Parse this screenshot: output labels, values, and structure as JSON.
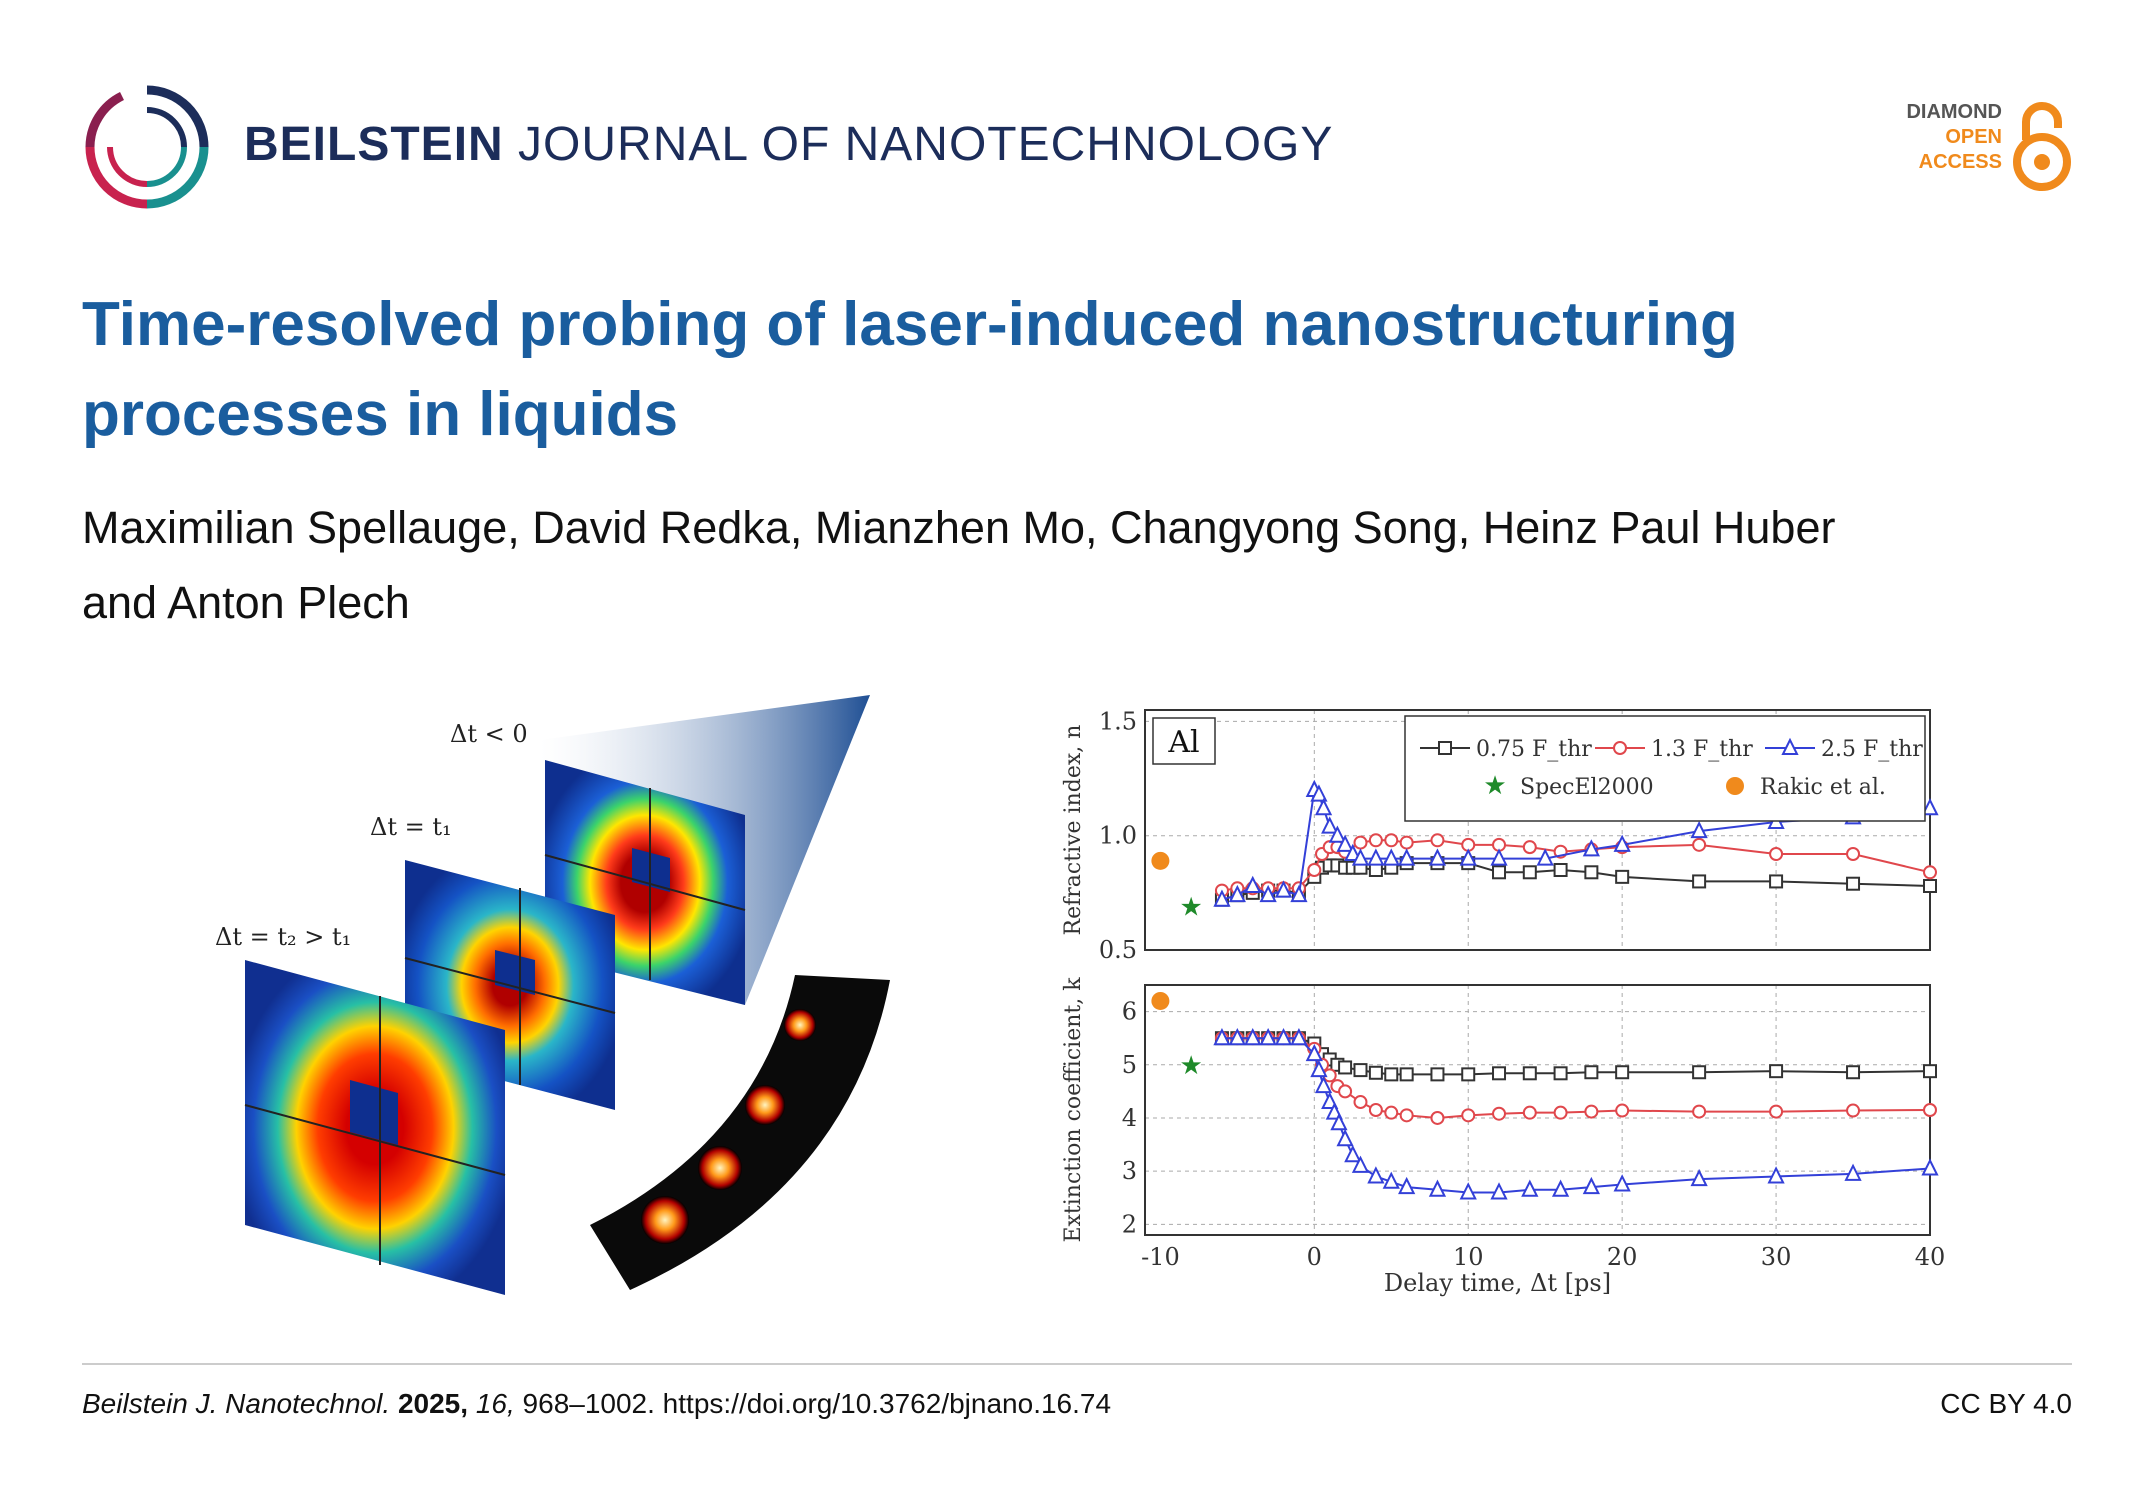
{
  "header": {
    "journal_bold": "BEILSTEIN",
    "journal_rest": "JOURNAL OF NANOTECHNOLOGY",
    "oa_line1": "DIAMOND",
    "oa_line2": "OPEN",
    "oa_line3": "ACCESS"
  },
  "article": {
    "title_line1": "Time-resolved probing of laser-induced nanostructuring",
    "title_line2": "processes in liquids",
    "authors_line1": "Maximilian Spellauge, David Redka, Mianzhen Mo, Changyong Song, Heinz Paul Huber",
    "authors_line2": "and Anton Plech"
  },
  "left_graphic": {
    "label_neg": "Δt < 0",
    "label_t1": "Δt = t₁",
    "label_t2": "Δt = t₂ > t₁"
  },
  "chart_data": [
    {
      "type": "line",
      "panel_label": "Al",
      "ylabel": "Refractive index, n",
      "ylim": [
        0.5,
        1.55
      ],
      "yticks": [
        "0.5",
        "1.0",
        "1.5"
      ],
      "xlim": [
        -11,
        40
      ],
      "legend": [
        "0.75 F_thr",
        "1.3 F_thr",
        "2.5 F_thr",
        "SpecEl2000",
        "Rakic et al."
      ],
      "series": [
        {
          "name": "0.75 F_thr",
          "color": "#333333",
          "marker": "square",
          "x": [
            -6,
            -5,
            -4,
            -3,
            -2,
            -1,
            0,
            0.5,
            1,
            1.5,
            2,
            2.5,
            3,
            4,
            5,
            6,
            8,
            10,
            12,
            14,
            16,
            18,
            20,
            25,
            30,
            35,
            40
          ],
          "y": [
            0.72,
            0.74,
            0.75,
            0.76,
            0.76,
            0.75,
            0.82,
            0.86,
            0.87,
            0.87,
            0.86,
            0.86,
            0.86,
            0.85,
            0.86,
            0.88,
            0.88,
            0.88,
            0.84,
            0.84,
            0.85,
            0.84,
            0.82,
            0.8,
            0.8,
            0.79,
            0.78
          ]
        },
        {
          "name": "1.3 F_thr",
          "color": "#e0474c",
          "marker": "circle",
          "x": [
            -6,
            -5,
            -4,
            -3,
            -2,
            -1,
            0,
            0.5,
            1,
            1.5,
            2,
            3,
            4,
            5,
            6,
            8,
            10,
            12,
            14,
            16,
            18,
            20,
            25,
            30,
            35,
            40
          ],
          "y": [
            0.76,
            0.77,
            0.77,
            0.77,
            0.77,
            0.77,
            0.85,
            0.92,
            0.95,
            0.95,
            0.93,
            0.97,
            0.98,
            0.98,
            0.97,
            0.98,
            0.96,
            0.96,
            0.95,
            0.93,
            0.94,
            0.95,
            0.96,
            0.92,
            0.92,
            0.84
          ]
        },
        {
          "name": "2.5 F_thr",
          "color": "#3340d8",
          "marker": "triangle",
          "x": [
            -6,
            -5,
            -4,
            -3,
            -2,
            -1,
            0,
            0.3,
            0.6,
            1,
            1.5,
            2,
            2.5,
            3,
            4,
            5,
            6,
            8,
            10,
            12,
            15,
            18,
            20,
            25,
            30,
            35,
            40
          ],
          "y": [
            0.72,
            0.74,
            0.78,
            0.74,
            0.76,
            0.74,
            1.2,
            1.18,
            1.12,
            1.04,
            1.0,
            0.96,
            0.92,
            0.9,
            0.9,
            0.9,
            0.9,
            0.9,
            0.9,
            0.9,
            0.9,
            0.94,
            0.96,
            1.02,
            1.06,
            1.08,
            1.12
          ]
        }
      ],
      "references": [
        {
          "name": "SpecEl2000",
          "color": "#1f8a2a",
          "marker": "star",
          "x": -8,
          "y": 0.69
        },
        {
          "name": "Rakic et al.",
          "color": "#f08a1c",
          "marker": "dot",
          "x": -10,
          "y": 0.89
        }
      ]
    },
    {
      "type": "line",
      "ylabel": "Extinction coefficient, k",
      "xlabel": "Delay time, Δt [ps]",
      "ylim": [
        1.8,
        6.5
      ],
      "yticks": [
        "2",
        "3",
        "4",
        "5",
        "6"
      ],
      "xticks": [
        "-10",
        "0",
        "10",
        "20",
        "30",
        "40"
      ],
      "xlim": [
        -11,
        40
      ],
      "series": [
        {
          "name": "0.75 F_thr",
          "color": "#333333",
          "marker": "square",
          "x": [
            -6,
            -5,
            -4,
            -3,
            -2,
            -1,
            0,
            0.5,
            1,
            1.5,
            2,
            3,
            4,
            5,
            6,
            8,
            10,
            12,
            14,
            16,
            18,
            20,
            25,
            30,
            35,
            40
          ],
          "y": [
            5.5,
            5.5,
            5.5,
            5.5,
            5.5,
            5.5,
            5.4,
            5.2,
            5.1,
            5.0,
            4.95,
            4.9,
            4.85,
            4.82,
            4.82,
            4.82,
            4.82,
            4.84,
            4.84,
            4.84,
            4.86,
            4.86,
            4.86,
            4.88,
            4.86,
            4.88
          ]
        },
        {
          "name": "1.3 F_thr",
          "color": "#e0474c",
          "marker": "circle",
          "x": [
            -6,
            -5,
            -4,
            -3,
            -2,
            -1,
            0,
            0.5,
            1,
            1.5,
            2,
            3,
            4,
            5,
            6,
            8,
            10,
            12,
            14,
            16,
            18,
            20,
            25,
            30,
            35,
            40
          ],
          "y": [
            5.5,
            5.5,
            5.5,
            5.5,
            5.5,
            5.5,
            5.3,
            5.0,
            4.8,
            4.6,
            4.5,
            4.3,
            4.15,
            4.1,
            4.05,
            4.0,
            4.05,
            4.08,
            4.1,
            4.1,
            4.12,
            4.14,
            4.12,
            4.12,
            4.14,
            4.15
          ]
        },
        {
          "name": "2.5 F_thr",
          "color": "#3340d8",
          "marker": "triangle",
          "x": [
            -6,
            -5,
            -4,
            -3,
            -2,
            -1,
            0,
            0.3,
            0.6,
            1,
            1.3,
            1.6,
            2,
            2.5,
            3,
            4,
            5,
            6,
            8,
            10,
            12,
            14,
            16,
            18,
            20,
            25,
            30,
            35,
            40
          ],
          "y": [
            5.5,
            5.5,
            5.5,
            5.5,
            5.5,
            5.5,
            5.2,
            4.9,
            4.6,
            4.3,
            4.1,
            3.9,
            3.6,
            3.3,
            3.1,
            2.9,
            2.8,
            2.7,
            2.65,
            2.6,
            2.6,
            2.65,
            2.65,
            2.7,
            2.75,
            2.85,
            2.9,
            2.95,
            3.05
          ]
        }
      ],
      "references": [
        {
          "name": "SpecEl2000",
          "color": "#1f8a2a",
          "marker": "star",
          "x": -8,
          "y": 5.0
        },
        {
          "name": "Rakic et al.",
          "color": "#f08a1c",
          "marker": "dot",
          "x": -10,
          "y": 6.2
        }
      ]
    }
  ],
  "footer": {
    "journal_abbrev": "Beilstein J. Nanotechnol.",
    "year": "2025,",
    "volume": "16,",
    "pages_doi": "968–1002. https://doi.org/10.3762/bjnano.16.74",
    "license": "CC BY 4.0"
  }
}
